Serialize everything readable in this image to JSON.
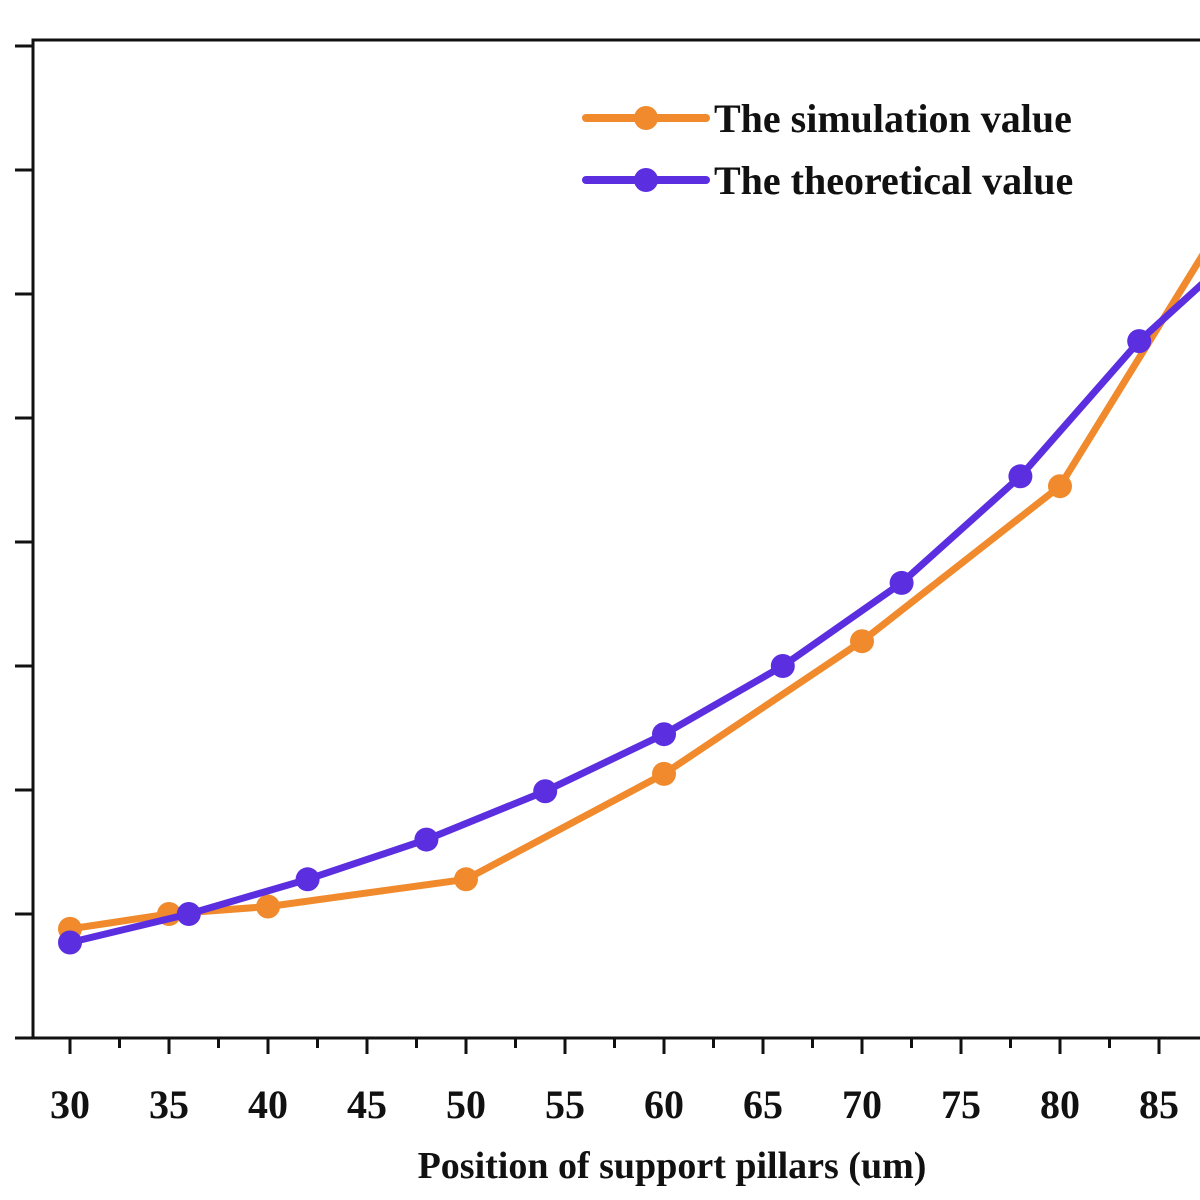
{
  "chart_data": {
    "type": "line",
    "title": "",
    "xlabel": "Position of support pillars (um)",
    "ylabel": "",
    "xlim": [
      28.5,
      88
    ],
    "ylim": [
      0,
      8
    ],
    "x_ticks": [
      30,
      35,
      40,
      45,
      50,
      55,
      60,
      65,
      70,
      75,
      80,
      85
    ],
    "x_minor_ticks": [
      32.5,
      37.5,
      42.5,
      47.5,
      52.5,
      57.5,
      62.5,
      67.5,
      72.5,
      77.5,
      82.5,
      87.5
    ],
    "y_ticks": [
      0,
      1,
      2,
      3,
      4,
      5,
      6,
      7,
      8
    ],
    "legend_position": "top-right",
    "grid": false,
    "series": [
      {
        "name": "The simulation value",
        "color": "#F08A2C",
        "x": [
          30,
          35,
          40,
          50,
          60,
          70,
          80,
          88
        ],
        "y": [
          0.88,
          1.0,
          1.06,
          1.28,
          2.13,
          3.2,
          4.45,
          6.52
        ]
      },
      {
        "name": "The theoretical value",
        "color": "#5B2FE0",
        "x": [
          30,
          36,
          42,
          48,
          54,
          60,
          66,
          72,
          78,
          84,
          88
        ],
        "y": [
          0.77,
          1.0,
          1.28,
          1.6,
          1.99,
          2.45,
          3.0,
          3.67,
          4.53,
          5.62,
          6.2
        ]
      }
    ]
  }
}
